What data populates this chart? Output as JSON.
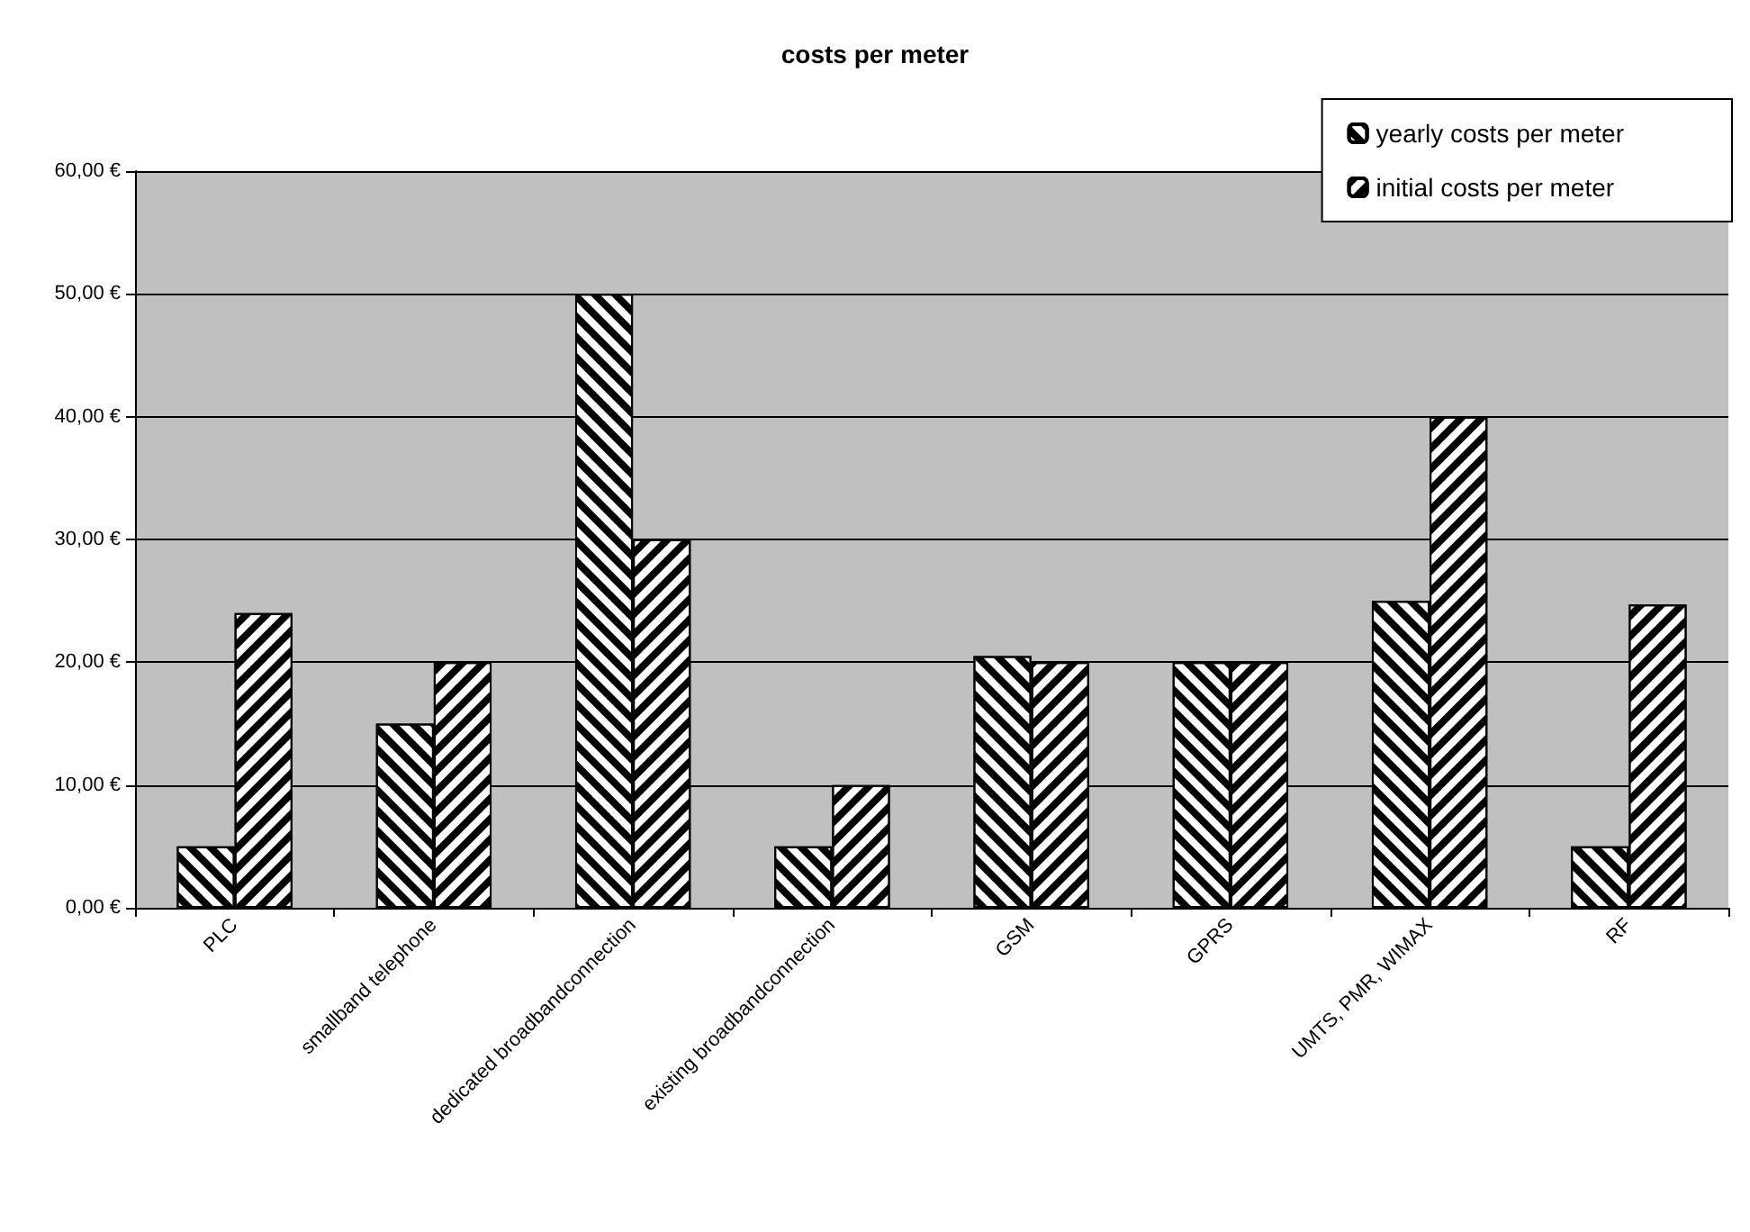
{
  "chart_data": {
    "type": "bar",
    "title": "costs per meter",
    "categories": [
      "PLC",
      "smallband telephone",
      "dedicated broadbandconnection",
      "existing broadbandconnection",
      "GSM",
      "GPRS",
      "UMTS, PMR, WIMAX",
      "RF"
    ],
    "series": [
      {
        "name": "yearly costs per meter",
        "color": "#000000",
        "values": [
          5,
          15,
          50,
          5,
          20.5,
          20,
          25,
          5
        ]
      },
      {
        "name": "initial costs per meter",
        "color": "#000000",
        "values": [
          24,
          20,
          30,
          10,
          20,
          20,
          40,
          24.7
        ]
      }
    ],
    "ylim": [
      0,
      60
    ],
    "yticks": [
      {
        "value": 0,
        "label": "0,00 €"
      },
      {
        "value": 10,
        "label": "10,00 €"
      },
      {
        "value": 20,
        "label": "20,00 €"
      },
      {
        "value": 30,
        "label": "30,00 €"
      },
      {
        "value": 40,
        "label": "40,00 €"
      },
      {
        "value": 50,
        "label": "50,00 €"
      },
      {
        "value": 60,
        "label": "60,00 €"
      }
    ],
    "grid": "y",
    "legend": "top right"
  }
}
